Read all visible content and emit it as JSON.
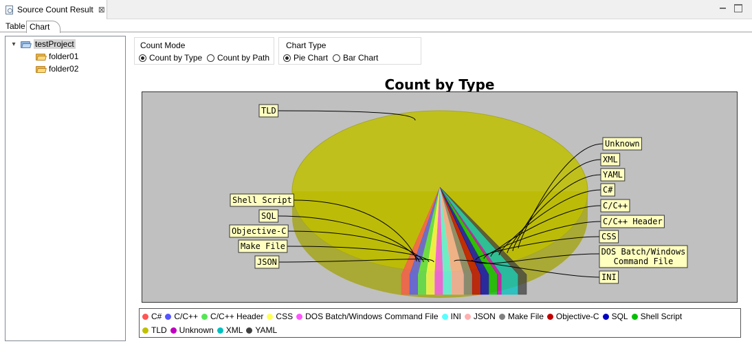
{
  "window": {
    "tab_title": "Source Count Result",
    "close_glyph": "⊠"
  },
  "subtabs": [
    "Table",
    "Chart"
  ],
  "tree": {
    "project": "testProject",
    "children": [
      "folder01",
      "folder02"
    ]
  },
  "count_mode": {
    "title": "Count Mode",
    "options": [
      "Count by Type",
      "Count by Path"
    ],
    "selected": "Count by Type"
  },
  "chart_type": {
    "title": "Chart Type",
    "options": [
      "Pie Chart",
      "Bar Chart"
    ],
    "selected": "Pie Chart"
  },
  "chart_data": {
    "type": "pie",
    "title": "Count by Type",
    "plot_background": "#c0c0c0",
    "legend_position": "bottom",
    "series": [
      {
        "name": "C#",
        "color": "#ff5555",
        "value": 2
      },
      {
        "name": "C/C++",
        "color": "#5555ff",
        "value": 2
      },
      {
        "name": "C/C++ Header",
        "color": "#55e655",
        "value": 2
      },
      {
        "name": "CSS",
        "color": "#ffff55",
        "value": 2
      },
      {
        "name": "DOS Batch/Windows Command File",
        "color": "#ff55ff",
        "value": 2
      },
      {
        "name": "INI",
        "color": "#55ffff",
        "value": 2
      },
      {
        "name": "JSON",
        "color": "#ffafaf",
        "value": 3
      },
      {
        "name": "Make File",
        "color": "#808080",
        "value": 2
      },
      {
        "name": "Objective-C",
        "color": "#c00000",
        "value": 2
      },
      {
        "name": "SQL",
        "color": "#0000c0",
        "value": 2
      },
      {
        "name": "Shell Script",
        "color": "#00c000",
        "value": 2
      },
      {
        "name": "TLD",
        "color": "#c0c000",
        "value": 76
      },
      {
        "name": "Unknown",
        "color": "#c000c0",
        "value": 1
      },
      {
        "name": "XML",
        "color": "#00c0c0",
        "value": 4
      },
      {
        "name": "YAML",
        "color": "#404040",
        "value": 2
      }
    ],
    "legend_rows": [
      [
        "C#",
        "C/C++",
        "C/C++ Header",
        "CSS",
        "DOS Batch/Windows Command File",
        "INI",
        "JSON",
        "Make File",
        "Objective-C",
        "SQL",
        "Shell Script"
      ],
      [
        "TLD",
        "Unknown",
        "XML",
        "YAML"
      ]
    ],
    "slice_labels_left": [
      "TLD",
      "Shell Script",
      "SQL",
      "Objective-C",
      "Make File",
      "JSON"
    ],
    "slice_labels_right": [
      "Unknown",
      "XML",
      "YAML",
      "C#",
      "C/C++",
      "C/C++ Header",
      "CSS",
      "DOS Batch/Windows Command File",
      "INI"
    ]
  }
}
